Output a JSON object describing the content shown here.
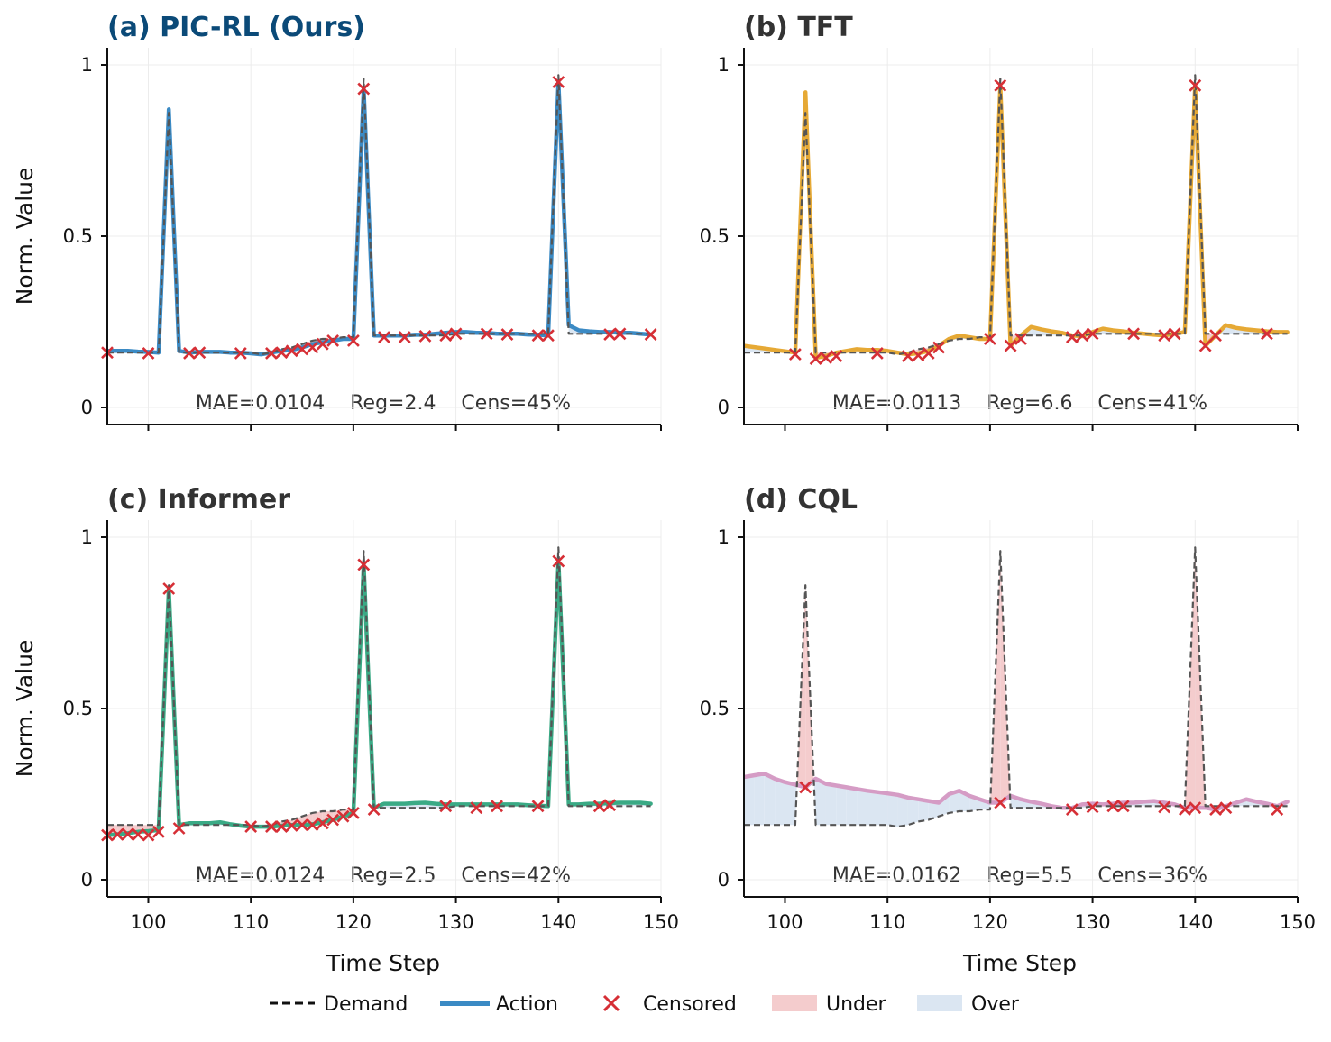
{
  "colors": {
    "demand": "#555555",
    "censored": "#d62f36",
    "under_fill": "#f4cccd",
    "over_fill": "#dbe6f2",
    "title_ours": "#0b4a78",
    "title_default": "#333333"
  },
  "shared_axes": {
    "xlabel": "Time Step",
    "ylabel": "Norm. Value",
    "xlim": [
      96,
      150
    ],
    "ylim": [
      -0.05,
      1.05
    ],
    "xticks": [
      100,
      110,
      120,
      130,
      140,
      150
    ],
    "yticks": [
      0,
      0.5,
      1
    ],
    "ytick_labels": [
      "0",
      "0.5",
      "1"
    ]
  },
  "legend": {
    "demand": "Demand",
    "action": "Action",
    "censored": "Censored",
    "under": "Under",
    "over": "Over"
  },
  "chart_data": [
    {
      "type": "line",
      "title": "(a) PIC-RL (Ours)",
      "title_style": "ours",
      "metrics": "MAE=0.0104    Reg=2.4    Cens=45%",
      "action_color": "#3b8ac4",
      "demand": {
        "x": [
          96,
          97,
          98,
          99,
          100,
          101,
          102,
          103,
          104,
          105,
          106,
          107,
          108,
          109,
          110,
          111,
          112,
          113,
          114,
          115,
          116,
          117,
          118,
          119,
          120,
          121,
          122,
          123,
          124,
          125,
          126,
          127,
          128,
          129,
          130,
          131,
          132,
          133,
          134,
          135,
          136,
          137,
          138,
          139,
          140,
          141,
          142,
          143,
          144,
          145,
          146,
          147,
          148,
          149
        ],
        "y": [
          0.16,
          0.16,
          0.16,
          0.16,
          0.16,
          0.16,
          0.86,
          0.16,
          0.16,
          0.16,
          0.16,
          0.16,
          0.16,
          0.16,
          0.16,
          0.155,
          0.16,
          0.17,
          0.175,
          0.185,
          0.195,
          0.2,
          0.2,
          0.205,
          0.205,
          0.96,
          0.21,
          0.21,
          0.21,
          0.21,
          0.21,
          0.21,
          0.21,
          0.21,
          0.215,
          0.215,
          0.215,
          0.215,
          0.215,
          0.215,
          0.215,
          0.215,
          0.215,
          0.215,
          0.97,
          0.215,
          0.215,
          0.215,
          0.215,
          0.215,
          0.215,
          0.215,
          0.215,
          0.215
        ]
      },
      "action": {
        "x": [
          96,
          97,
          98,
          99,
          100,
          101,
          102,
          103,
          104,
          105,
          106,
          107,
          108,
          109,
          110,
          111,
          112,
          113,
          114,
          115,
          116,
          117,
          118,
          119,
          120,
          121,
          122,
          123,
          124,
          125,
          126,
          127,
          128,
          129,
          130,
          131,
          132,
          133,
          134,
          135,
          136,
          137,
          138,
          139,
          140,
          141,
          142,
          143,
          144,
          145,
          146,
          147,
          148,
          149
        ],
        "y": [
          0.165,
          0.165,
          0.165,
          0.163,
          0.162,
          0.16,
          0.87,
          0.165,
          0.16,
          0.162,
          0.162,
          0.162,
          0.16,
          0.16,
          0.158,
          0.155,
          0.16,
          0.165,
          0.168,
          0.175,
          0.185,
          0.19,
          0.195,
          0.2,
          0.2,
          0.93,
          0.21,
          0.21,
          0.21,
          0.21,
          0.212,
          0.212,
          0.215,
          0.218,
          0.22,
          0.22,
          0.218,
          0.218,
          0.215,
          0.215,
          0.215,
          0.213,
          0.212,
          0.21,
          0.95,
          0.24,
          0.225,
          0.222,
          0.22,
          0.22,
          0.218,
          0.218,
          0.215,
          0.213
        ]
      },
      "censored": {
        "x": [
          96,
          100,
          104,
          105,
          109,
          112,
          113,
          114,
          115,
          116,
          117,
          118,
          120,
          121,
          123,
          125,
          127,
          129,
          130,
          133,
          135,
          138,
          139,
          140,
          145,
          146,
          149
        ],
        "y": [
          0.16,
          0.158,
          0.158,
          0.16,
          0.158,
          0.158,
          0.16,
          0.165,
          0.17,
          0.175,
          0.185,
          0.195,
          0.195,
          0.93,
          0.205,
          0.205,
          0.208,
          0.21,
          0.215,
          0.215,
          0.213,
          0.21,
          0.21,
          0.95,
          0.213,
          0.215,
          0.213
        ]
      }
    },
    {
      "type": "line",
      "title": "(b) TFT",
      "title_style": "default",
      "metrics": "MAE=0.0113    Reg=6.6    Cens=41%",
      "action_color": "#e6a935",
      "demand": {
        "x": [
          96,
          97,
          98,
          99,
          100,
          101,
          102,
          103,
          104,
          105,
          106,
          107,
          108,
          109,
          110,
          111,
          112,
          113,
          114,
          115,
          116,
          117,
          118,
          119,
          120,
          121,
          122,
          123,
          124,
          125,
          126,
          127,
          128,
          129,
          130,
          131,
          132,
          133,
          134,
          135,
          136,
          137,
          138,
          139,
          140,
          141,
          142,
          143,
          144,
          145,
          146,
          147,
          148,
          149
        ],
        "y": [
          0.16,
          0.16,
          0.16,
          0.16,
          0.16,
          0.16,
          0.86,
          0.16,
          0.16,
          0.16,
          0.16,
          0.16,
          0.16,
          0.16,
          0.16,
          0.155,
          0.16,
          0.17,
          0.175,
          0.185,
          0.195,
          0.2,
          0.2,
          0.205,
          0.205,
          0.96,
          0.21,
          0.21,
          0.21,
          0.21,
          0.21,
          0.21,
          0.21,
          0.21,
          0.215,
          0.215,
          0.215,
          0.215,
          0.215,
          0.215,
          0.215,
          0.215,
          0.215,
          0.215,
          0.97,
          0.215,
          0.215,
          0.215,
          0.215,
          0.215,
          0.215,
          0.215,
          0.215,
          0.215
        ]
      },
      "action": {
        "x": [
          96,
          97,
          98,
          99,
          100,
          101,
          102,
          103,
          104,
          105,
          106,
          107,
          108,
          109,
          110,
          111,
          112,
          113,
          114,
          115,
          116,
          117,
          118,
          119,
          120,
          121,
          122,
          123,
          124,
          125,
          126,
          127,
          128,
          129,
          130,
          131,
          132,
          133,
          134,
          135,
          136,
          137,
          138,
          139,
          140,
          141,
          142,
          143,
          144,
          145,
          146,
          147,
          148,
          149
        ],
        "y": [
          0.18,
          0.176,
          0.172,
          0.168,
          0.164,
          0.16,
          0.92,
          0.145,
          0.15,
          0.16,
          0.165,
          0.17,
          0.168,
          0.168,
          0.165,
          0.16,
          0.155,
          0.158,
          0.165,
          0.18,
          0.2,
          0.21,
          0.205,
          0.2,
          0.2,
          0.94,
          0.18,
          0.21,
          0.235,
          0.228,
          0.222,
          0.218,
          0.21,
          0.208,
          0.22,
          0.23,
          0.225,
          0.222,
          0.218,
          0.215,
          0.212,
          0.21,
          0.215,
          0.22,
          0.94,
          0.18,
          0.21,
          0.24,
          0.232,
          0.228,
          0.225,
          0.222,
          0.22,
          0.22
        ]
      },
      "censored": {
        "x": [
          101,
          103,
          104,
          105,
          109,
          112,
          113,
          114,
          115,
          120,
          121,
          122,
          123,
          128,
          129,
          130,
          134,
          137,
          138,
          140,
          141,
          142,
          147
        ],
        "y": [
          0.155,
          0.142,
          0.145,
          0.15,
          0.158,
          0.15,
          0.152,
          0.158,
          0.175,
          0.2,
          0.94,
          0.18,
          0.2,
          0.205,
          0.21,
          0.215,
          0.215,
          0.21,
          0.215,
          0.94,
          0.18,
          0.21,
          0.215
        ]
      }
    },
    {
      "type": "line",
      "title": "(c) Informer",
      "title_style": "default",
      "metrics": "MAE=0.0124    Reg=2.5    Cens=42%",
      "action_color": "#3aaa85",
      "demand": {
        "x": [
          96,
          97,
          98,
          99,
          100,
          101,
          102,
          103,
          104,
          105,
          106,
          107,
          108,
          109,
          110,
          111,
          112,
          113,
          114,
          115,
          116,
          117,
          118,
          119,
          120,
          121,
          122,
          123,
          124,
          125,
          126,
          127,
          128,
          129,
          130,
          131,
          132,
          133,
          134,
          135,
          136,
          137,
          138,
          139,
          140,
          141,
          142,
          143,
          144,
          145,
          146,
          147,
          148,
          149
        ],
        "y": [
          0.16,
          0.16,
          0.16,
          0.16,
          0.16,
          0.16,
          0.86,
          0.16,
          0.16,
          0.16,
          0.16,
          0.16,
          0.16,
          0.16,
          0.16,
          0.155,
          0.16,
          0.17,
          0.175,
          0.185,
          0.195,
          0.2,
          0.2,
          0.205,
          0.205,
          0.96,
          0.21,
          0.21,
          0.21,
          0.21,
          0.21,
          0.21,
          0.21,
          0.21,
          0.215,
          0.215,
          0.215,
          0.215,
          0.215,
          0.215,
          0.215,
          0.215,
          0.215,
          0.215,
          0.97,
          0.215,
          0.215,
          0.215,
          0.215,
          0.215,
          0.215,
          0.215,
          0.215,
          0.215
        ]
      },
      "action": {
        "x": [
          96,
          97,
          98,
          99,
          100,
          101,
          102,
          103,
          104,
          105,
          106,
          107,
          108,
          109,
          110,
          111,
          112,
          113,
          114,
          115,
          116,
          117,
          118,
          119,
          120,
          121,
          122,
          123,
          124,
          125,
          126,
          127,
          128,
          129,
          130,
          131,
          132,
          133,
          134,
          135,
          136,
          137,
          138,
          139,
          140,
          141,
          142,
          143,
          144,
          145,
          146,
          147,
          148,
          149
        ],
        "y": [
          0.13,
          0.133,
          0.136,
          0.14,
          0.142,
          0.145,
          0.85,
          0.16,
          0.165,
          0.165,
          0.165,
          0.168,
          0.162,
          0.158,
          0.155,
          0.155,
          0.155,
          0.158,
          0.16,
          0.16,
          0.162,
          0.168,
          0.175,
          0.185,
          0.195,
          0.92,
          0.21,
          0.222,
          0.222,
          0.222,
          0.224,
          0.225,
          0.222,
          0.22,
          0.22,
          0.22,
          0.22,
          0.22,
          0.22,
          0.22,
          0.22,
          0.218,
          0.216,
          0.215,
          0.93,
          0.22,
          0.22,
          0.222,
          0.222,
          0.224,
          0.225,
          0.225,
          0.225,
          0.222
        ]
      },
      "censored": {
        "x": [
          96,
          97,
          98,
          99,
          100,
          101,
          102,
          103,
          110,
          112,
          113,
          114,
          115,
          116,
          117,
          118,
          119,
          120,
          121,
          122,
          129,
          132,
          134,
          138,
          140,
          144,
          145
        ],
        "y": [
          0.13,
          0.132,
          0.133,
          0.132,
          0.13,
          0.14,
          0.85,
          0.15,
          0.155,
          0.155,
          0.155,
          0.158,
          0.16,
          0.16,
          0.165,
          0.175,
          0.185,
          0.195,
          0.92,
          0.205,
          0.215,
          0.21,
          0.215,
          0.215,
          0.93,
          0.215,
          0.218
        ]
      }
    },
    {
      "type": "line",
      "title": "(d) CQL",
      "title_style": "default",
      "metrics": "MAE=0.0162    Reg=5.5    Cens=36%",
      "action_color": "#d59cc5",
      "demand": {
        "x": [
          96,
          97,
          98,
          99,
          100,
          101,
          102,
          103,
          104,
          105,
          106,
          107,
          108,
          109,
          110,
          111,
          112,
          113,
          114,
          115,
          116,
          117,
          118,
          119,
          120,
          121,
          122,
          123,
          124,
          125,
          126,
          127,
          128,
          129,
          130,
          131,
          132,
          133,
          134,
          135,
          136,
          137,
          138,
          139,
          140,
          141,
          142,
          143,
          144,
          145,
          146,
          147,
          148,
          149
        ],
        "y": [
          0.16,
          0.16,
          0.16,
          0.16,
          0.16,
          0.16,
          0.86,
          0.16,
          0.16,
          0.16,
          0.16,
          0.16,
          0.16,
          0.16,
          0.16,
          0.155,
          0.16,
          0.17,
          0.175,
          0.185,
          0.195,
          0.2,
          0.2,
          0.205,
          0.205,
          0.96,
          0.21,
          0.21,
          0.21,
          0.21,
          0.21,
          0.21,
          0.21,
          0.21,
          0.215,
          0.215,
          0.215,
          0.215,
          0.215,
          0.215,
          0.215,
          0.215,
          0.215,
          0.215,
          0.97,
          0.215,
          0.215,
          0.215,
          0.215,
          0.215,
          0.215,
          0.215,
          0.215,
          0.215
        ]
      },
      "action": {
        "x": [
          96,
          97,
          98,
          99,
          100,
          101,
          102,
          103,
          104,
          105,
          106,
          107,
          108,
          109,
          110,
          111,
          112,
          113,
          114,
          115,
          116,
          117,
          118,
          119,
          120,
          121,
          122,
          123,
          124,
          125,
          126,
          127,
          128,
          129,
          130,
          131,
          132,
          133,
          134,
          135,
          136,
          137,
          138,
          139,
          140,
          141,
          142,
          143,
          144,
          145,
          146,
          147,
          148,
          149
        ],
        "y": [
          0.3,
          0.305,
          0.31,
          0.295,
          0.285,
          0.278,
          0.27,
          0.295,
          0.28,
          0.275,
          0.27,
          0.265,
          0.26,
          0.256,
          0.252,
          0.248,
          0.24,
          0.235,
          0.23,
          0.225,
          0.25,
          0.26,
          0.245,
          0.235,
          0.225,
          0.225,
          0.245,
          0.235,
          0.228,
          0.222,
          0.215,
          0.21,
          0.21,
          0.22,
          0.222,
          0.22,
          0.222,
          0.225,
          0.225,
          0.228,
          0.23,
          0.225,
          0.22,
          0.21,
          0.21,
          0.21,
          0.205,
          0.215,
          0.225,
          0.235,
          0.228,
          0.222,
          0.215,
          0.228
        ]
      },
      "censored": {
        "x": [
          102,
          121,
          128,
          130,
          132,
          133,
          137,
          139,
          140,
          142,
          143,
          148
        ],
        "y": [
          0.27,
          0.225,
          0.205,
          0.212,
          0.215,
          0.215,
          0.212,
          0.205,
          0.21,
          0.205,
          0.21,
          0.205
        ]
      }
    }
  ]
}
